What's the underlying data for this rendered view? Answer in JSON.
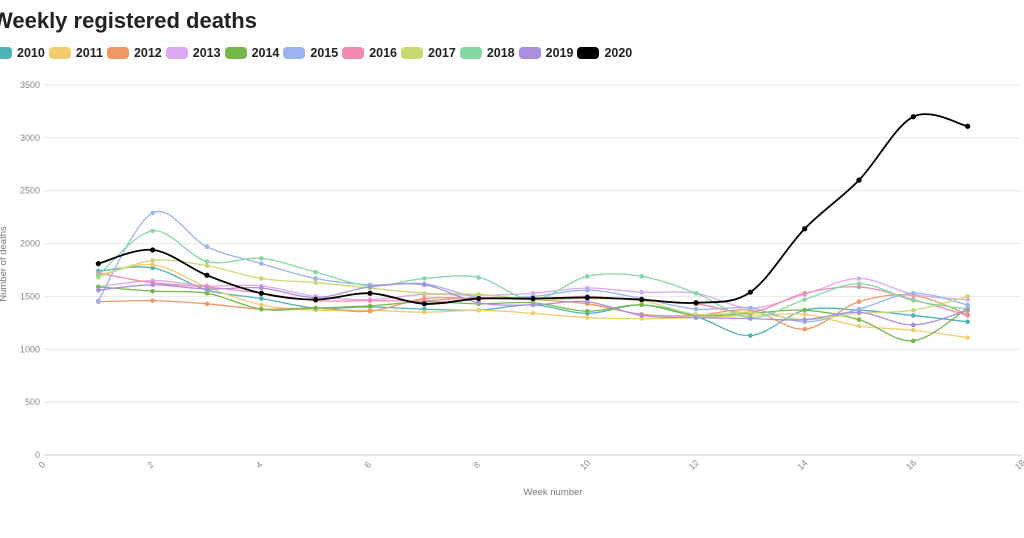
{
  "chart_data": {
    "type": "line",
    "title": "Weekly registered deaths",
    "xlabel": "Week number",
    "ylabel": "Number of deaths",
    "xlim": [
      0,
      18
    ],
    "ylim": [
      0,
      3500
    ],
    "xticks": [
      0,
      2,
      4,
      6,
      8,
      10,
      12,
      14,
      16,
      18
    ],
    "yticks": [
      0,
      500,
      1000,
      1500,
      2000,
      2500,
      3000,
      3500
    ],
    "xtick_labels": [
      "0",
      "2",
      "4",
      "6",
      "8",
      "10",
      "12",
      "14",
      "16",
      "18"
    ],
    "ytick_labels": [
      "0",
      "500",
      "1000",
      "1500",
      "2000",
      "2500",
      "3000",
      "3500"
    ],
    "grid": true,
    "legend_position": "top-left",
    "x": [
      1,
      2,
      3,
      4,
      5,
      6,
      7,
      8,
      9,
      10,
      11,
      12,
      13,
      14,
      15,
      16,
      17
    ],
    "series": [
      {
        "name": "2010",
        "color": "#4fb3b7",
        "values": [
          1740,
          1770,
          1560,
          1480,
          1390,
          1400,
          1380,
          1370,
          1420,
          1340,
          1420,
          1310,
          1130,
          1370,
          1370,
          1320,
          1260
        ]
      },
      {
        "name": "2011",
        "color": "#f2cc6f",
        "values": [
          1700,
          1800,
          1590,
          1420,
          1370,
          1370,
          1350,
          1370,
          1340,
          1300,
          1290,
          1300,
          1320,
          1330,
          1220,
          1180,
          1110
        ]
      },
      {
        "name": "2012",
        "color": "#ee9868",
        "values": [
          1450,
          1460,
          1430,
          1380,
          1390,
          1360,
          1480,
          1480,
          1470,
          1430,
          1330,
          1320,
          1370,
          1190,
          1450,
          1510,
          1330
        ]
      },
      {
        "name": "2013",
        "color": "#dbaaf0",
        "values": [
          1590,
          1650,
          1600,
          1600,
          1500,
          1470,
          1520,
          1510,
          1530,
          1580,
          1540,
          1530,
          1390,
          1520,
          1670,
          1520,
          1470
        ]
      },
      {
        "name": "2014",
        "color": "#74b84c",
        "values": [
          1590,
          1550,
          1530,
          1380,
          1390,
          1410,
          1450,
          1430,
          1440,
          1360,
          1420,
          1320,
          1340,
          1370,
          1280,
          1080,
          1390
        ]
      },
      {
        "name": "2015",
        "color": "#9ab4ef",
        "values": [
          1460,
          2290,
          1970,
          1810,
          1670,
          1610,
          1620,
          1490,
          1500,
          1560,
          1480,
          1380,
          1390,
          1260,
          1380,
          1530,
          1420
        ]
      },
      {
        "name": "2016",
        "color": "#f08bae",
        "values": [
          1720,
          1630,
          1590,
          1530,
          1460,
          1460,
          1460,
          1490,
          1470,
          1500,
          1460,
          1430,
          1350,
          1530,
          1590,
          1470,
          1320
        ]
      },
      {
        "name": "2017",
        "color": "#cad873",
        "values": [
          1680,
          1840,
          1790,
          1670,
          1630,
          1580,
          1530,
          1520,
          1470,
          1480,
          1460,
          1330,
          1350,
          1280,
          1340,
          1370,
          1500
        ]
      },
      {
        "name": "2018",
        "color": "#85d8a3",
        "values": [
          1700,
          2120,
          1830,
          1860,
          1730,
          1600,
          1670,
          1680,
          1470,
          1690,
          1690,
          1530,
          1300,
          1470,
          1620,
          1460,
          1380
        ]
      },
      {
        "name": "2019",
        "color": "#ab8fdc",
        "values": [
          1560,
          1610,
          1570,
          1580,
          1490,
          1590,
          1610,
          1440,
          1420,
          1450,
          1320,
          1300,
          1290,
          1280,
          1350,
          1230,
          1370
        ]
      },
      {
        "name": "2020",
        "color": "#000000",
        "values": [
          1810,
          1940,
          1700,
          1530,
          1470,
          1530,
          1430,
          1480,
          1480,
          1490,
          1470,
          1440,
          1540,
          2140,
          2600,
          3200,
          3110
        ]
      }
    ]
  }
}
